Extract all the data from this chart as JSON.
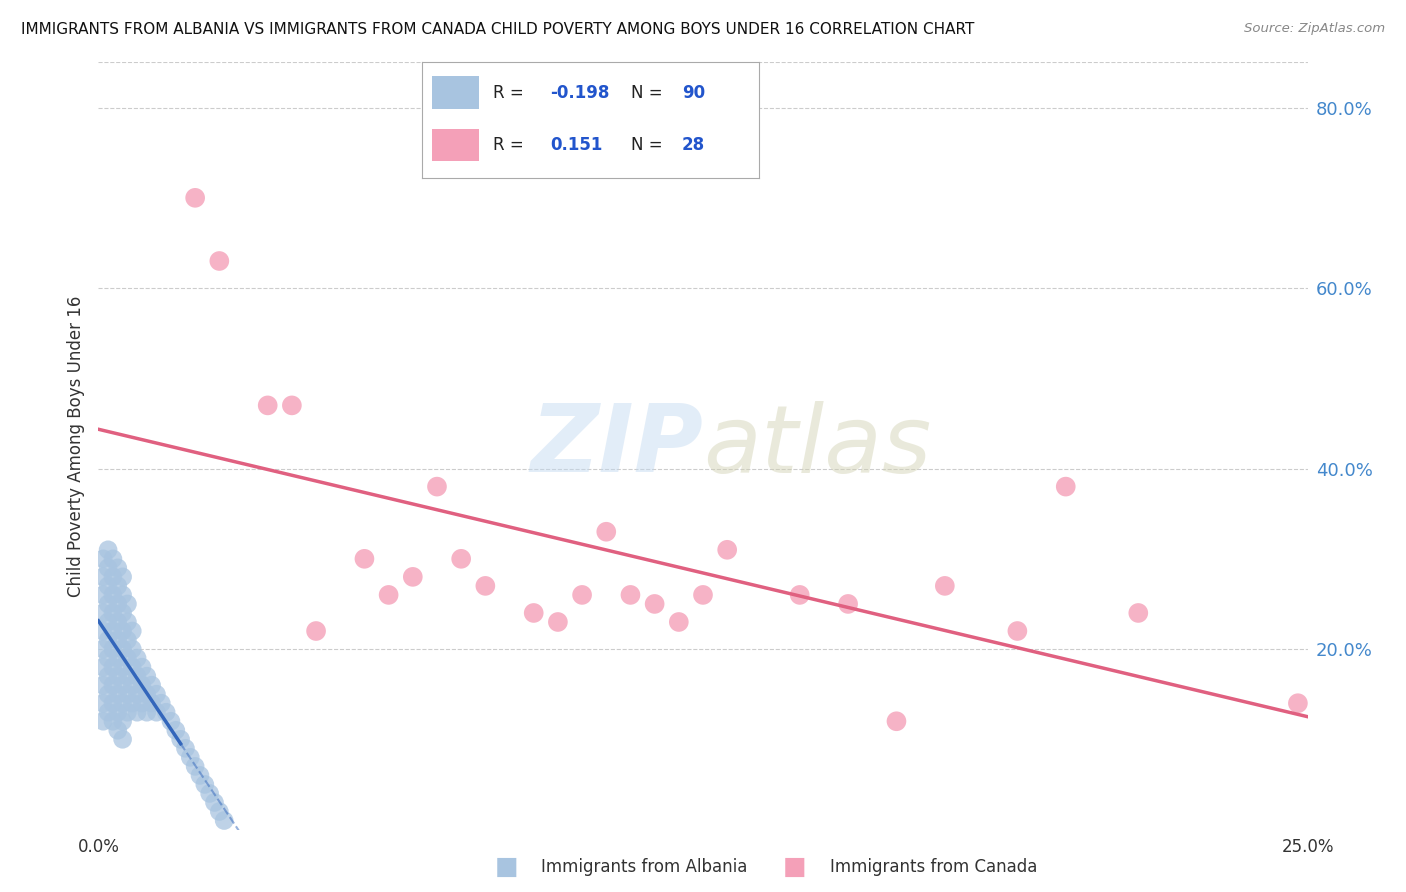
{
  "title": "IMMIGRANTS FROM ALBANIA VS IMMIGRANTS FROM CANADA CHILD POVERTY AMONG BOYS UNDER 16 CORRELATION CHART",
  "source": "Source: ZipAtlas.com",
  "ylabel": "Child Poverty Among Boys Under 16",
  "watermark_zip": "ZIP",
  "watermark_atlas": "atlas",
  "legend_albania": {
    "R": -0.198,
    "N": 90,
    "label": "Immigrants from Albania"
  },
  "legend_canada": {
    "R": 0.151,
    "N": 28,
    "label": "Immigrants from Canada"
  },
  "xlim": [
    0.0,
    0.25
  ],
  "ylim": [
    0.0,
    0.85
  ],
  "yticks": [
    0.2,
    0.4,
    0.6,
    0.8
  ],
  "ytick_labels": [
    "20.0%",
    "40.0%",
    "60.0%",
    "80.0%"
  ],
  "xticks": [
    0.0,
    0.05,
    0.1,
    0.15,
    0.2,
    0.25
  ],
  "xtick_labels": [
    "0.0%",
    "",
    "",
    "",
    "",
    "25.0%"
  ],
  "albania_color": "#a8c4e0",
  "canada_color": "#f4a0b8",
  "albania_line_color": "#3366bb",
  "canada_line_color": "#e06080",
  "albania_x": [
    0.001,
    0.001,
    0.001,
    0.001,
    0.001,
    0.001,
    0.001,
    0.001,
    0.001,
    0.001,
    0.002,
    0.002,
    0.002,
    0.002,
    0.002,
    0.002,
    0.002,
    0.002,
    0.002,
    0.002,
    0.003,
    0.003,
    0.003,
    0.003,
    0.003,
    0.003,
    0.003,
    0.003,
    0.003,
    0.003,
    0.004,
    0.004,
    0.004,
    0.004,
    0.004,
    0.004,
    0.004,
    0.004,
    0.004,
    0.004,
    0.005,
    0.005,
    0.005,
    0.005,
    0.005,
    0.005,
    0.005,
    0.005,
    0.005,
    0.005,
    0.006,
    0.006,
    0.006,
    0.006,
    0.006,
    0.006,
    0.006,
    0.007,
    0.007,
    0.007,
    0.007,
    0.007,
    0.008,
    0.008,
    0.008,
    0.008,
    0.009,
    0.009,
    0.009,
    0.01,
    0.01,
    0.01,
    0.011,
    0.011,
    0.012,
    0.012,
    0.013,
    0.014,
    0.015,
    0.016,
    0.017,
    0.018,
    0.019,
    0.02,
    0.021,
    0.022,
    0.023,
    0.024,
    0.025,
    0.026
  ],
  "albania_y": [
    0.22,
    0.2,
    0.18,
    0.24,
    0.26,
    0.28,
    0.16,
    0.14,
    0.3,
    0.12,
    0.25,
    0.23,
    0.21,
    0.27,
    0.29,
    0.19,
    0.17,
    0.15,
    0.31,
    0.13,
    0.24,
    0.22,
    0.2,
    0.26,
    0.28,
    0.18,
    0.16,
    0.14,
    0.3,
    0.12,
    0.23,
    0.21,
    0.19,
    0.25,
    0.27,
    0.17,
    0.15,
    0.13,
    0.29,
    0.11,
    0.22,
    0.2,
    0.18,
    0.24,
    0.26,
    0.16,
    0.14,
    0.12,
    0.28,
    0.1,
    0.21,
    0.19,
    0.17,
    0.23,
    0.25,
    0.15,
    0.13,
    0.2,
    0.18,
    0.16,
    0.22,
    0.14,
    0.19,
    0.17,
    0.15,
    0.13,
    0.18,
    0.16,
    0.14,
    0.17,
    0.15,
    0.13,
    0.16,
    0.14,
    0.15,
    0.13,
    0.14,
    0.13,
    0.12,
    0.11,
    0.1,
    0.09,
    0.08,
    0.07,
    0.06,
    0.05,
    0.04,
    0.03,
    0.02,
    0.01
  ],
  "canada_x": [
    0.02,
    0.025,
    0.035,
    0.04,
    0.045,
    0.055,
    0.06,
    0.065,
    0.07,
    0.075,
    0.08,
    0.09,
    0.095,
    0.1,
    0.105,
    0.11,
    0.115,
    0.12,
    0.125,
    0.13,
    0.145,
    0.155,
    0.165,
    0.175,
    0.19,
    0.2,
    0.215,
    0.248
  ],
  "canada_y": [
    0.7,
    0.63,
    0.47,
    0.47,
    0.22,
    0.3,
    0.26,
    0.28,
    0.38,
    0.3,
    0.27,
    0.24,
    0.23,
    0.26,
    0.33,
    0.26,
    0.25,
    0.23,
    0.26,
    0.31,
    0.26,
    0.25,
    0.12,
    0.27,
    0.22,
    0.38,
    0.24,
    0.14
  ]
}
